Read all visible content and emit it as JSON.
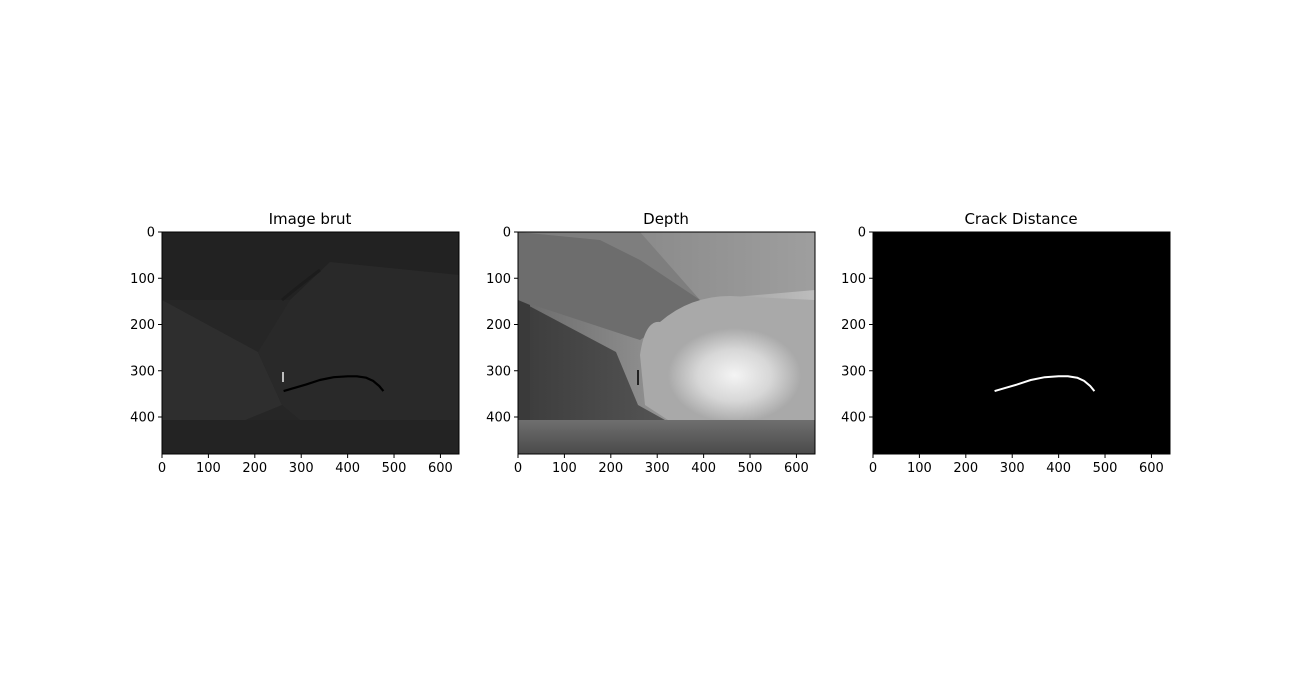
{
  "figure": {
    "background": "#ffffff",
    "panels": [
      {
        "title": "Image brut",
        "colormap": "gray",
        "x_ticks": [
          "0",
          "100",
          "200",
          "300",
          "400",
          "500",
          "600"
        ],
        "y_ticks": [
          "0",
          "100",
          "200",
          "300",
          "400"
        ],
        "x_range": [
          0,
          640
        ],
        "y_range": [
          0,
          480
        ],
        "crack": [
          [
            262,
            344
          ],
          [
            285,
            337
          ],
          [
            310,
            330
          ],
          [
            340,
            320
          ],
          [
            370,
            314
          ],
          [
            400,
            312
          ],
          [
            420,
            312
          ],
          [
            440,
            315
          ],
          [
            455,
            322
          ],
          [
            468,
            333
          ],
          [
            477,
            344
          ]
        ]
      },
      {
        "title": "Depth",
        "colormap": "gray",
        "x_ticks": [
          "0",
          "100",
          "200",
          "300",
          "400",
          "500",
          "600"
        ],
        "y_ticks": [
          "0",
          "100",
          "200",
          "300",
          "400"
        ],
        "x_range": [
          0,
          640
        ],
        "y_range": [
          0,
          480
        ]
      },
      {
        "title": "Crack Distance",
        "colormap": "gray",
        "x_ticks": [
          "0",
          "100",
          "200",
          "300",
          "400",
          "500",
          "600"
        ],
        "y_ticks": [
          "0",
          "100",
          "200",
          "300",
          "400"
        ],
        "x_range": [
          0,
          640
        ],
        "y_range": [
          0,
          480
        ],
        "crack": [
          [
            262,
            344
          ],
          [
            285,
            337
          ],
          [
            310,
            330
          ],
          [
            340,
            320
          ],
          [
            370,
            314
          ],
          [
            400,
            312
          ],
          [
            420,
            312
          ],
          [
            440,
            315
          ],
          [
            455,
            322
          ],
          [
            468,
            333
          ],
          [
            477,
            344
          ]
        ]
      }
    ]
  }
}
